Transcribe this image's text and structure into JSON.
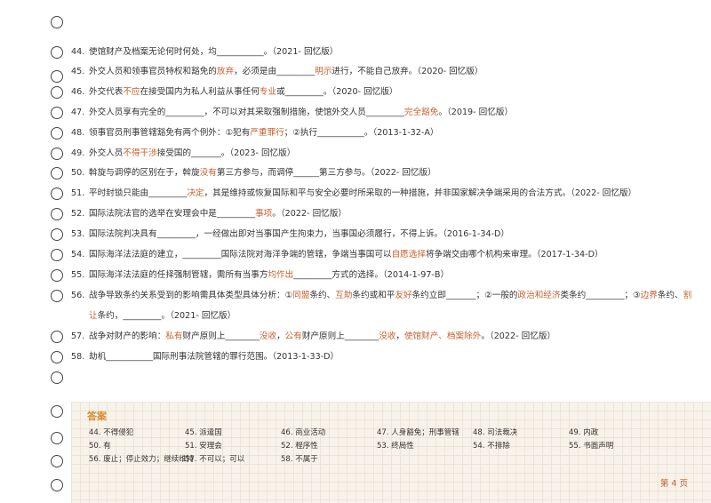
{
  "questions": [
    {
      "number": "44.",
      "parts": [
        {
          "text": "使馆财产及档案无论何时何处，均___________。（2021- 回忆版）"
        }
      ]
    },
    {
      "number": "45.",
      "parts": [
        {
          "text": "外交人员和领事官员特权和豁免的"
        },
        {
          "text": "放弃",
          "red": true
        },
        {
          "text": "，必须是由_________"
        },
        {
          "text": "明示",
          "red": true
        },
        {
          "text": "进行，不能自己放弃。（2020- 回忆版）"
        }
      ]
    },
    {
      "number": "46.",
      "parts": [
        {
          "text": "外交代表"
        },
        {
          "text": "不应",
          "red": true
        },
        {
          "text": "在接受国内为私人利益从事任何"
        },
        {
          "text": "专业",
          "red": true
        },
        {
          "text": "或_________。（2020- 回忆版）"
        }
      ]
    },
    {
      "number": "47.",
      "parts": [
        {
          "text": "外交人员享有完全的_________，不可以对其采取强制措施，使馆外交人员_________"
        },
        {
          "text": "完全豁免",
          "red": true
        },
        {
          "text": "。（2019- 回忆版）"
        }
      ]
    },
    {
      "number": "48.",
      "parts": [
        {
          "text": "领事官员刑事管辖豁免有两个例外：①犯有"
        },
        {
          "text": "严重罪行",
          "red": true
        },
        {
          "text": "；②执行___________。（2013-1-32-A）"
        }
      ]
    },
    {
      "number": "49.",
      "parts": [
        {
          "text": "外交人员"
        },
        {
          "text": "不得干涉",
          "red": true
        },
        {
          "text": "接受国的_______。（2023- 回忆版）"
        }
      ]
    },
    {
      "number": "50.",
      "parts": [
        {
          "text": "斡旋与调停的区别在于，斡旋"
        },
        {
          "text": "没有",
          "red": true
        },
        {
          "text": "第三方参与，而调停______第三方参与。（2022- 回忆版）"
        }
      ]
    },
    {
      "number": "51.",
      "parts": [
        {
          "text": "平时封锁只能由_________"
        },
        {
          "text": "决定",
          "red": true
        },
        {
          "text": "，其是维持或恢复国际和平与安全必要时所采取的一种措施，并非国家解决争端采用的合法方式。（2022- 回忆版）"
        }
      ]
    },
    {
      "number": "52.",
      "parts": [
        {
          "text": "国际法院法官的选举在安理会中是_________"
        },
        {
          "text": "事项",
          "red": true
        },
        {
          "text": "。（2022- 回忆版）"
        }
      ]
    },
    {
      "number": "53.",
      "parts": [
        {
          "text": "国际法院判决具有_________，一经做出即对当事国产生拘束力，当事国必须履行，不得上诉。（2016-1-34-D）"
        }
      ]
    },
    {
      "number": "54.",
      "parts": [
        {
          "text": "国际海洋法法庭的建立，_________国际法院对海洋争端的管辖，争端当事国可以"
        },
        {
          "text": "自愿选择",
          "red": true
        },
        {
          "text": "将争端交由哪个机构来审理。（2017-1-34-D）"
        }
      ]
    },
    {
      "number": "55.",
      "parts": [
        {
          "text": "国际海洋法法庭的任择强制管辖，需所有当事方"
        },
        {
          "text": "均作出",
          "red": true
        },
        {
          "text": "_________方式的选择。（2014-1-97-B）"
        }
      ]
    },
    {
      "number": "56.",
      "parts": [
        {
          "text": "战争导致条约关系受到的影响需具体类型具体分析：①"
        },
        {
          "text": "同盟",
          "red": true
        },
        {
          "text": "条约、"
        },
        {
          "text": "互助",
          "red": true
        },
        {
          "text": "条约或和平"
        },
        {
          "text": "友好",
          "red": true
        },
        {
          "text": "条约立即_______；②一般的"
        },
        {
          "text": "政治和经济",
          "red": true
        },
        {
          "text": "类条约_________；③"
        },
        {
          "text": "边界",
          "red": true
        },
        {
          "text": "条约、"
        },
        {
          "text": "割让",
          "red": true
        },
        {
          "text": "条约，_________。（2021- 回忆版）"
        }
      ]
    },
    {
      "number": "57.",
      "parts": [
        {
          "text": "战争对财产的影响："
        },
        {
          "text": "私有",
          "red": true
        },
        {
          "text": "财产原则上________"
        },
        {
          "text": "没收",
          "red": true
        },
        {
          "text": "，"
        },
        {
          "text": "公有",
          "red": true
        },
        {
          "text": "财产原则上________"
        },
        {
          "text": "没收",
          "red": true
        },
        {
          "text": "，"
        },
        {
          "text": "使馆财产、档案除外",
          "red": true
        },
        {
          "text": "。（2022- 回忆版）"
        }
      ]
    },
    {
      "number": "58.",
      "parts": [
        {
          "text": "劫机___________国际刑事法院管辖的罪行范围。（2013-1-33-D）"
        }
      ]
    }
  ],
  "answers": {
    "title": "答案",
    "items": [
      "44. 不得侵犯",
      "45. 派遣国",
      "46. 商业活动",
      "47. 人身豁免；刑事管辖",
      "48. 司法裁决",
      "49. 内政",
      "50. 有",
      "51. 安理会",
      "52. 程序性",
      "53. 终局性",
      "54. 不排除",
      "55. 书面声明",
      "56. 废止；停止效力；继续维持",
      "57. 不可以；可以",
      "58. 不属于"
    ]
  },
  "footer": "第 4 页"
}
